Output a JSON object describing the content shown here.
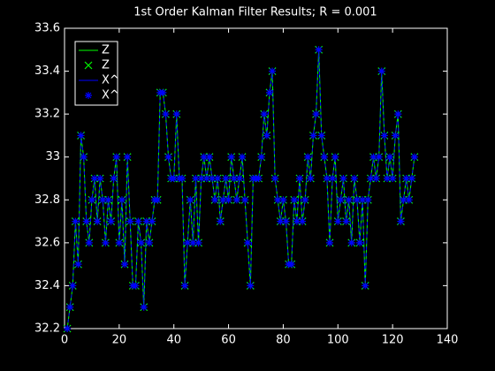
{
  "chart_data": {
    "type": "line",
    "title": "1st Order Kalman Filter Results; R = 0.001",
    "x": [
      1,
      2,
      3,
      4,
      5,
      6,
      7,
      8,
      9,
      10,
      11,
      12,
      13,
      14,
      15,
      16,
      17,
      18,
      19,
      20,
      21,
      22,
      23,
      24,
      25,
      26,
      27,
      28,
      29,
      30,
      31,
      32,
      33,
      34,
      35,
      36,
      37,
      38,
      39,
      40,
      41,
      42,
      43,
      44,
      45,
      46,
      47,
      48,
      49,
      50,
      51,
      52,
      53,
      54,
      55,
      56,
      57,
      58,
      59,
      60,
      61,
      62,
      63,
      64,
      65,
      66,
      67,
      68,
      69,
      70,
      71,
      72,
      73,
      74,
      75,
      76,
      77,
      78,
      79,
      80,
      81,
      82,
      83,
      84,
      85,
      86,
      87,
      88,
      89,
      90,
      91,
      92,
      93,
      94,
      95,
      96,
      97,
      98,
      99,
      100,
      101,
      102,
      103,
      104,
      105,
      106,
      107,
      108,
      109,
      110,
      111,
      112,
      113,
      114,
      115,
      116,
      117,
      118,
      119,
      120,
      121,
      122,
      123,
      124,
      125,
      126,
      127,
      128
    ],
    "series": [
      {
        "name": "Z",
        "color": "#00ff00",
        "marker": "x",
        "values": [
          32.2,
          32.3,
          32.4,
          32.7,
          32.5,
          33.1,
          33.0,
          32.7,
          32.6,
          32.8,
          32.9,
          32.7,
          32.9,
          32.8,
          32.6,
          32.8,
          32.7,
          32.9,
          33.0,
          32.6,
          32.8,
          32.5,
          33.0,
          32.7,
          32.4,
          32.4,
          32.7,
          32.6,
          32.3,
          32.7,
          32.6,
          32.7,
          32.8,
          32.8,
          33.3,
          33.3,
          33.2,
          33.0,
          32.9,
          32.9,
          33.2,
          32.9,
          32.9,
          32.4,
          32.6,
          32.8,
          32.6,
          32.9,
          32.6,
          32.9,
          33.0,
          32.9,
          33.0,
          32.9,
          32.8,
          32.9,
          32.7,
          32.8,
          32.9,
          32.8,
          33.0,
          32.9,
          32.8,
          32.9,
          33.0,
          32.8,
          32.6,
          32.4,
          32.9,
          32.9,
          32.9,
          33.0,
          33.2,
          33.1,
          33.3,
          33.4,
          32.9,
          32.8,
          32.7,
          32.8,
          32.7,
          32.5,
          32.5,
          32.8,
          32.7,
          32.9,
          32.7,
          32.8,
          33.0,
          32.9,
          33.1,
          33.2,
          33.5,
          33.1,
          33.0,
          32.9,
          32.6,
          32.9,
          33.0,
          32.7,
          32.8,
          32.9,
          32.7,
          32.8,
          32.6,
          32.9,
          32.8,
          32.6,
          32.8,
          32.4,
          32.8,
          32.9,
          33.0,
          32.9,
          33.0,
          33.4,
          33.1,
          32.9,
          33.0,
          32.9,
          33.1,
          33.2,
          32.7,
          32.8,
          32.9,
          32.8,
          32.9,
          33.0
        ]
      },
      {
        "name": "X^",
        "color": "#0000ff",
        "marker": "*",
        "values": [
          32.2,
          32.3,
          32.4,
          32.7,
          32.5,
          33.1,
          33.0,
          32.7,
          32.6,
          32.8,
          32.9,
          32.7,
          32.9,
          32.8,
          32.6,
          32.8,
          32.7,
          32.9,
          33.0,
          32.6,
          32.8,
          32.5,
          33.0,
          32.7,
          32.4,
          32.4,
          32.7,
          32.6,
          32.3,
          32.7,
          32.6,
          32.7,
          32.8,
          32.8,
          33.3,
          33.3,
          33.2,
          33.0,
          32.9,
          32.9,
          33.2,
          32.9,
          32.9,
          32.4,
          32.6,
          32.8,
          32.6,
          32.9,
          32.6,
          32.9,
          33.0,
          32.9,
          33.0,
          32.9,
          32.8,
          32.9,
          32.7,
          32.8,
          32.9,
          32.8,
          33.0,
          32.9,
          32.8,
          32.9,
          33.0,
          32.8,
          32.6,
          32.4,
          32.9,
          32.9,
          32.9,
          33.0,
          33.2,
          33.1,
          33.3,
          33.4,
          32.9,
          32.8,
          32.7,
          32.8,
          32.7,
          32.5,
          32.5,
          32.8,
          32.7,
          32.9,
          32.7,
          32.8,
          33.0,
          32.9,
          33.1,
          33.2,
          33.5,
          33.1,
          33.0,
          32.9,
          32.6,
          32.9,
          33.0,
          32.7,
          32.8,
          32.9,
          32.7,
          32.8,
          32.6,
          32.9,
          32.8,
          32.6,
          32.8,
          32.4,
          32.8,
          32.9,
          33.0,
          32.9,
          33.0,
          33.4,
          33.1,
          32.9,
          33.0,
          32.9,
          33.1,
          33.2,
          32.7,
          32.8,
          32.9,
          32.8,
          32.9,
          33.0
        ]
      }
    ],
    "xlim": [
      0,
      140
    ],
    "xticks": [
      0,
      20,
      40,
      60,
      80,
      100,
      120,
      140
    ],
    "ylim": [
      32.2,
      33.6
    ],
    "yticks": [
      32.2,
      32.4,
      32.6,
      32.8,
      33,
      33.2,
      33.4,
      33.6
    ],
    "grid": false,
    "legend": "top-left"
  }
}
